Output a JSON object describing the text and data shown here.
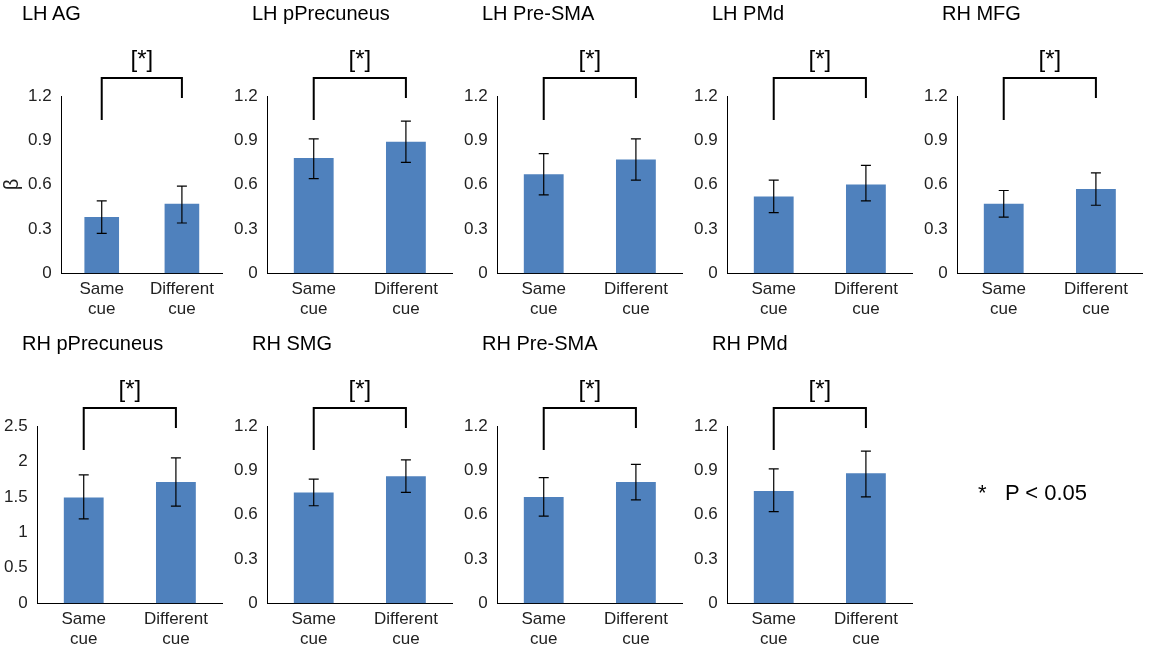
{
  "chart_data": [
    {
      "type": "bar",
      "title": "LH AG",
      "ylabel": "β",
      "categories": [
        "Same cue",
        "Different cue"
      ],
      "series": [
        {
          "color": "#4f81bd",
          "values": [
            0.38,
            0.47
          ],
          "errors": [
            [
              0.27,
              0.49
            ],
            [
              0.34,
              0.59
            ]
          ]
        }
      ],
      "ylim": [
        0,
        1.2
      ],
      "yticks": [
        0,
        0.3,
        0.6,
        0.9,
        1.2
      ],
      "annotations": [
        "[*]"
      ]
    },
    {
      "type": "bar",
      "title": "LH pPrecuneus",
      "categories": [
        "Same cue",
        "Different cue"
      ],
      "series": [
        {
          "color": "#4f81bd",
          "values": [
            0.78,
            0.89
          ],
          "errors": [
            [
              0.64,
              0.91
            ],
            [
              0.75,
              1.03
            ]
          ]
        }
      ],
      "ylim": [
        0,
        1.2
      ],
      "yticks": [
        0,
        0.3,
        0.6,
        0.9,
        1.2
      ],
      "annotations": [
        "[*]"
      ]
    },
    {
      "type": "bar",
      "title": "LH Pre-SMA",
      "categories": [
        "Same cue",
        "Different cue"
      ],
      "series": [
        {
          "color": "#4f81bd",
          "values": [
            0.67,
            0.77
          ],
          "errors": [
            [
              0.53,
              0.81
            ],
            [
              0.63,
              0.91
            ]
          ]
        }
      ],
      "ylim": [
        0,
        1.2
      ],
      "yticks": [
        0,
        0.3,
        0.6,
        0.9,
        1.2
      ],
      "annotations": [
        "[*]"
      ]
    },
    {
      "type": "bar",
      "title": "LH PMd",
      "categories": [
        "Same cue",
        "Different cue"
      ],
      "series": [
        {
          "color": "#4f81bd",
          "values": [
            0.52,
            0.6
          ],
          "errors": [
            [
              0.41,
              0.63
            ],
            [
              0.49,
              0.73
            ]
          ]
        }
      ],
      "ylim": [
        0,
        1.2
      ],
      "yticks": [
        0,
        0.3,
        0.6,
        0.9,
        1.2
      ],
      "annotations": [
        "[*]"
      ]
    },
    {
      "type": "bar",
      "title": "RH MFG",
      "categories": [
        "Same cue",
        "Different cue"
      ],
      "series": [
        {
          "color": "#4f81bd",
          "values": [
            0.47,
            0.57
          ],
          "errors": [
            [
              0.38,
              0.56
            ],
            [
              0.46,
              0.68
            ]
          ]
        }
      ],
      "ylim": [
        0,
        1.2
      ],
      "yticks": [
        0,
        0.3,
        0.6,
        0.9,
        1.2
      ],
      "annotations": [
        "[*]"
      ]
    },
    {
      "type": "bar",
      "title": "RH pPrecuneus",
      "categories": [
        "Same cue",
        "Different cue"
      ],
      "series": [
        {
          "color": "#4f81bd",
          "values": [
            1.49,
            1.71
          ],
          "errors": [
            [
              1.19,
              1.81
            ],
            [
              1.37,
              2.05
            ]
          ]
        }
      ],
      "ylim": [
        0,
        2.5
      ],
      "yticks": [
        0,
        0.5,
        1,
        1.5,
        2,
        2.5
      ],
      "annotations": [
        "[*]"
      ]
    },
    {
      "type": "bar",
      "title": "RH SMG",
      "categories": [
        "Same cue",
        "Different cue"
      ],
      "series": [
        {
          "color": "#4f81bd",
          "values": [
            0.75,
            0.86
          ],
          "errors": [
            [
              0.66,
              0.84
            ],
            [
              0.75,
              0.97
            ]
          ]
        }
      ],
      "ylim": [
        0,
        1.2
      ],
      "yticks": [
        0,
        0.3,
        0.6,
        0.9,
        1.2
      ],
      "annotations": [
        "[*]"
      ]
    },
    {
      "type": "bar",
      "title": "RH Pre-SMA",
      "categories": [
        "Same cue",
        "Different cue"
      ],
      "series": [
        {
          "color": "#4f81bd",
          "values": [
            0.72,
            0.82
          ],
          "errors": [
            [
              0.59,
              0.85
            ],
            [
              0.7,
              0.94
            ]
          ]
        }
      ],
      "ylim": [
        0,
        1.2
      ],
      "yticks": [
        0,
        0.3,
        0.6,
        0.9,
        1.2
      ],
      "annotations": [
        "[*]"
      ]
    },
    {
      "type": "bar",
      "title": "RH PMd",
      "categories": [
        "Same cue",
        "Different cue"
      ],
      "series": [
        {
          "color": "#4f81bd",
          "values": [
            0.76,
            0.88
          ],
          "errors": [
            [
              0.62,
              0.91
            ],
            [
              0.72,
              1.03
            ]
          ]
        }
      ],
      "ylim": [
        0,
        1.2
      ],
      "yticks": [
        0,
        0.3,
        0.6,
        0.9,
        1.2
      ],
      "annotations": [
        "[*]"
      ]
    },
    {
      "type": "other",
      "annotations": [
        "*   P < 0.05"
      ]
    }
  ]
}
